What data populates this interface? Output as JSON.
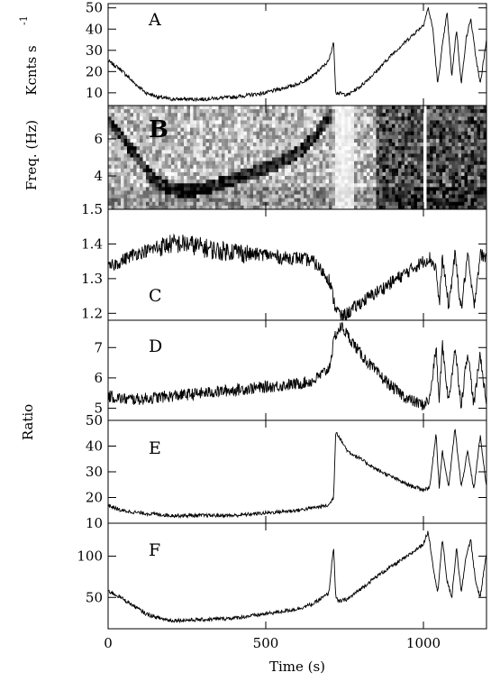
{
  "chart_data": {
    "type": "line",
    "xlabel": "Time (s)",
    "xlim": [
      0,
      1200
    ],
    "x_ticks": [
      0,
      500,
      1000
    ],
    "shared_ylabel": "Ratio",
    "panels": [
      {
        "letter": "A",
        "ylabel": "Kcnts s",
        "ylabel_sup": "-1",
        "ylim": [
          4,
          52
        ],
        "y_ticks": [
          10,
          20,
          30,
          40,
          50
        ],
        "series": [
          {
            "x": [
              0,
              40,
              80,
              120,
              160,
              200,
              300,
              400,
              500,
              600,
              650,
              700,
              715,
              722,
              728,
              760,
              800,
              850,
              900,
              950,
              1000,
              1015,
              1030,
              1045,
              1060,
              1075,
              1090,
              1105,
              1120,
              1135,
              1150,
              1165,
              1180,
              1200
            ],
            "y": [
              25,
              21,
              15,
              10,
              8,
              7,
              7,
              8,
              10,
              14,
              18,
              25,
              34,
              10,
              10,
              9,
              13,
              20,
              28,
              35,
              42,
              50,
              40,
              14,
              32,
              48,
              18,
              40,
              14,
              35,
              45,
              28,
              14,
              35
            ]
          }
        ]
      },
      {
        "letter": "B",
        "ylabel": "Freq. (Hz)",
        "ylim": [
          2.2,
          7.8
        ],
        "y_ticks": [
          4,
          6
        ],
        "plot_kind": "dynamic power spectrum (grayscale)",
        "qpo_track": {
          "x": [
            0,
            50,
            100,
            150,
            200,
            250,
            300,
            400,
            500,
            550,
            600,
            650,
            700
          ],
          "y": [
            7.0,
            6.0,
            4.8,
            3.7,
            3.3,
            3.2,
            3.3,
            3.8,
            4.4,
            4.7,
            5.2,
            6.0,
            7.2
          ]
        }
      },
      {
        "letter": "C",
        "ylim": [
          1.18,
          1.5
        ],
        "y_ticks": [
          1.2,
          1.3,
          1.4,
          1.5
        ],
        "series": [
          {
            "x": [
              0,
              40,
              80,
              120,
              160,
              200,
              250,
              300,
              350,
              400,
              450,
              500,
              550,
              600,
              650,
              700,
              720,
              740,
              760,
              800,
              850,
              900,
              950,
              1000,
              1020,
              1040,
              1050,
              1060,
              1080,
              1100,
              1120,
              1140,
              1160,
              1180,
              1200
            ],
            "y": [
              1.33,
              1.35,
              1.37,
              1.38,
              1.39,
              1.4,
              1.4,
              1.39,
              1.38,
              1.38,
              1.37,
              1.37,
              1.36,
              1.36,
              1.35,
              1.3,
              1.22,
              1.19,
              1.2,
              1.23,
              1.26,
              1.29,
              1.32,
              1.35,
              1.36,
              1.33,
              1.22,
              1.36,
              1.22,
              1.37,
              1.21,
              1.37,
              1.22,
              1.37,
              1.36
            ]
          }
        ]
      },
      {
        "letter": "D",
        "ylim": [
          4.6,
          7.9
        ],
        "y_ticks": [
          5,
          6,
          7
        ],
        "series": [
          {
            "x": [
              0,
              50,
              100,
              200,
              300,
              400,
              500,
              600,
              650,
              700,
              720,
              740,
              760,
              800,
              850,
              900,
              950,
              1000,
              1020,
              1040,
              1050,
              1060,
              1080,
              1100,
              1120,
              1140,
              1160,
              1180,
              1200
            ],
            "y": [
              5.4,
              5.3,
              5.3,
              5.4,
              5.5,
              5.6,
              5.7,
              5.8,
              5.9,
              6.3,
              7.4,
              7.7,
              7.4,
              6.8,
              6.2,
              5.7,
              5.3,
              5.1,
              5.3,
              7.0,
              5.2,
              7.1,
              5.2,
              7.0,
              5.1,
              6.9,
              5.1,
              6.8,
              5.1
            ]
          }
        ]
      },
      {
        "letter": "E",
        "ylim": [
          10,
          50
        ],
        "y_ticks": [
          10,
          20,
          30,
          40,
          50
        ],
        "series": [
          {
            "x": [
              0,
              40,
              100,
              200,
              300,
              400,
              500,
              600,
              650,
              700,
              715,
              722,
              740,
              760,
              800,
              850,
              900,
              950,
              1000,
              1020,
              1040,
              1050,
              1060,
              1080,
              1100,
              1120,
              1140,
              1160,
              1180,
              1200
            ],
            "y": [
              17,
              15,
              14,
              13,
              13,
              13,
              14,
              15,
              16,
              17,
              20,
              46,
              42,
              38,
              35,
              31,
              28,
              25,
              23,
              24,
              45,
              24,
              38,
              24,
              47,
              24,
              38,
              23,
              44,
              24
            ]
          }
        ]
      },
      {
        "letter": "F",
        "ylim": [
          12,
          140
        ],
        "y_ticks": [
          50,
          100
        ],
        "series": [
          {
            "x": [
              0,
              40,
              80,
              120,
              160,
              200,
              300,
              400,
              500,
              600,
              650,
              700,
              715,
              722,
              730,
              760,
              800,
              850,
              900,
              950,
              1000,
              1015,
              1030,
              1045,
              1060,
              1075,
              1090,
              1105,
              1120,
              1135,
              1150,
              1165,
              1180,
              1200
            ],
            "y": [
              58,
              50,
              40,
              30,
              25,
              22,
              23,
              25,
              30,
              36,
              42,
              55,
              112,
              50,
              45,
              48,
              60,
              75,
              88,
              100,
              115,
              130,
              90,
              55,
              120,
              70,
              50,
              110,
              55,
              100,
              120,
              70,
              50,
              105
            ]
          }
        ]
      }
    ]
  }
}
